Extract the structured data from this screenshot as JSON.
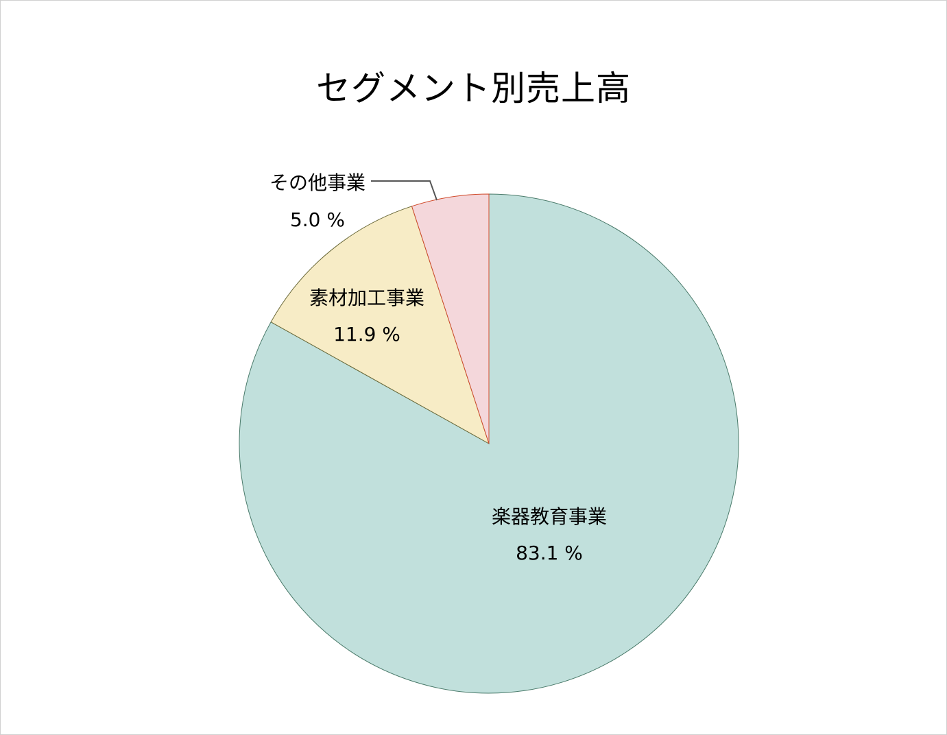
{
  "chart_data": {
    "type": "pie",
    "title": "セグメント別売上高",
    "start_angle_deg": 0,
    "direction": "clockwise",
    "slices": [
      {
        "label": "楽器教育事業",
        "value": 83.1,
        "value_label": "83.1 %",
        "color": "#c1e0dc",
        "stroke": "#4a7a6a"
      },
      {
        "label": "素材加工事業",
        "value": 11.9,
        "value_label": "11.9 %",
        "color": "#f7ecc6",
        "stroke": "#6b6a3a"
      },
      {
        "label": "その他事業",
        "value": 5.0,
        "value_label": "5.0 %",
        "color": "#f4d7db",
        "stroke": "#d04a2a"
      }
    ],
    "legend": "none",
    "grid": false
  }
}
